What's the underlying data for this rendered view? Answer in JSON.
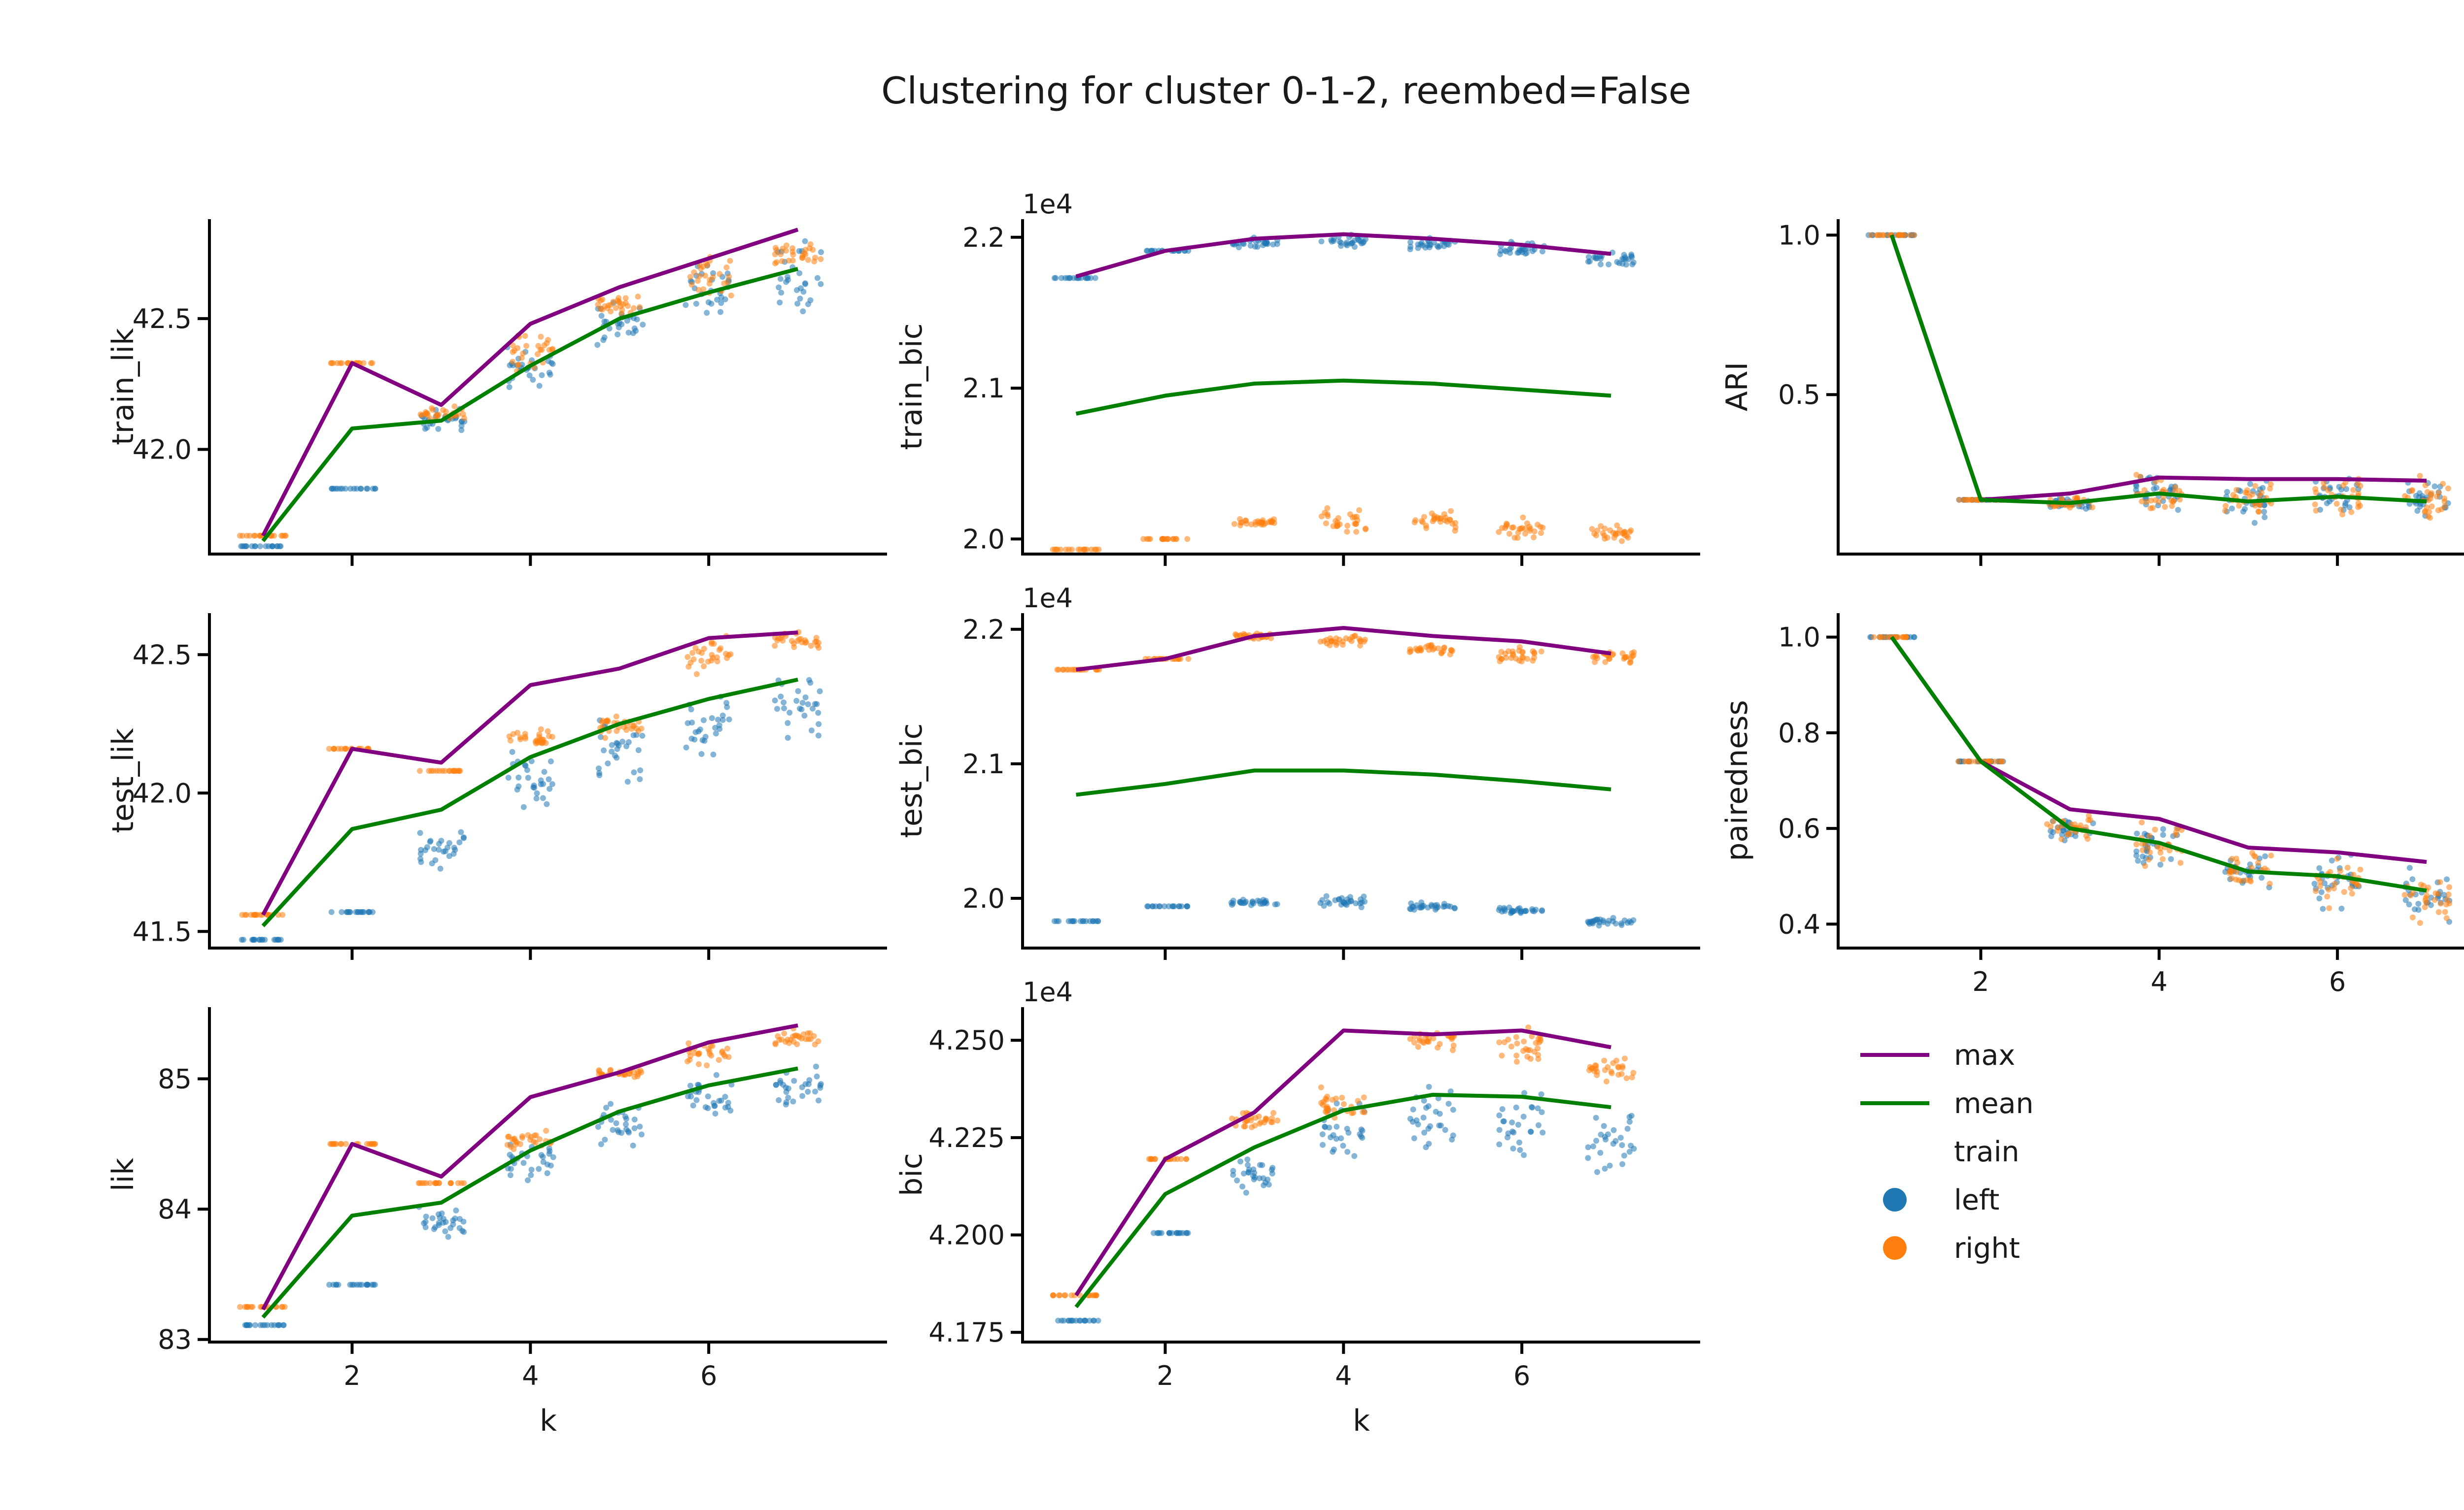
{
  "figure": {
    "title": "Clustering for cluster 0-1-2, reembed=False",
    "xlabel": "k"
  },
  "colors": {
    "max": "#800080",
    "mean": "#008000",
    "left": "#1f77b4",
    "right": "#ff7f0e"
  },
  "legend": {
    "max_label": "max",
    "mean_label": "mean",
    "hue_title": "train",
    "left_label": "left",
    "right_label": "right",
    "placement": "bottom-right"
  },
  "chart_data": [
    {
      "type": "line+strip",
      "ylabel": "train_lik",
      "x": [
        1,
        2,
        3,
        4,
        5,
        6,
        7
      ],
      "xlim": [
        0.4,
        8
      ],
      "ylim": [
        41.6,
        42.88
      ],
      "yticks": [
        42.0,
        42.5
      ],
      "ytick_labels": [
        "42.0",
        "42.5"
      ],
      "series": [
        {
          "name": "max",
          "values": [
            41.67,
            42.33,
            42.17,
            42.48,
            42.62,
            42.73,
            42.84
          ]
        },
        {
          "name": "mean",
          "values": [
            41.65,
            42.08,
            42.11,
            42.32,
            42.5,
            42.6,
            42.69
          ]
        }
      ],
      "strip": {
        "left": {
          "center": [
            41.63,
            41.85,
            42.11,
            42.32,
            42.48,
            42.6,
            42.65
          ],
          "spread": [
            0.0,
            0.0,
            0.04,
            0.08,
            0.08,
            0.1,
            0.12
          ]
        },
        "right": {
          "center": [
            41.67,
            42.33,
            42.14,
            42.38,
            42.56,
            42.67,
            42.75
          ],
          "spread": [
            0.0,
            0.0,
            0.03,
            0.06,
            0.05,
            0.08,
            0.05
          ]
        }
      }
    },
    {
      "type": "line+strip",
      "ylabel": "train_bic",
      "offset_label": "1e4",
      "x": [
        1,
        2,
        3,
        4,
        5,
        6,
        7
      ],
      "xlim": [
        0.4,
        8
      ],
      "ylim": [
        1.99,
        2.212
      ],
      "yticks": [
        2.0,
        2.1,
        2.2
      ],
      "ytick_labels": [
        "2.0",
        "2.1",
        "2.2"
      ],
      "series": [
        {
          "name": "max",
          "values": [
            2.174,
            2.191,
            2.199,
            2.202,
            2.199,
            2.195,
            2.189
          ]
        },
        {
          "name": "mean",
          "values": [
            2.083,
            2.095,
            2.103,
            2.105,
            2.103,
            2.099,
            2.095
          ]
        }
      ],
      "strip": {
        "left": {
          "center": [
            2.173,
            2.191,
            2.196,
            2.198,
            2.195,
            2.192,
            2.186
          ],
          "spread": [
            0.0,
            0.0,
            0.003,
            0.005,
            0.004,
            0.004,
            0.004
          ]
        },
        "right": {
          "center": [
            1.993,
            2.0,
            2.011,
            2.012,
            2.012,
            2.007,
            2.004
          ],
          "spread": [
            0.0,
            0.0,
            0.002,
            0.006,
            0.005,
            0.006,
            0.004
          ]
        }
      }
    },
    {
      "type": "line+strip",
      "ylabel": "ARI",
      "x": [
        1,
        2,
        3,
        4,
        5,
        6,
        7
      ],
      "xlim": [
        0.4,
        8
      ],
      "ylim": [
        0.0,
        1.05
      ],
      "yticks": [
        0.5,
        1.0
      ],
      "ytick_labels": [
        "0.5",
        "1.0"
      ],
      "series": [
        {
          "name": "max",
          "values": [
            1.0,
            0.17,
            0.19,
            0.24,
            0.235,
            0.235,
            0.23
          ]
        },
        {
          "name": "mean",
          "values": [
            1.0,
            0.17,
            0.16,
            0.19,
            0.165,
            0.18,
            0.165
          ]
        }
      ],
      "strip": {
        "left": {
          "center": [
            1.0,
            0.17,
            0.16,
            0.19,
            0.17,
            0.19,
            0.17
          ],
          "spread": [
            0.0,
            0.0,
            0.02,
            0.06,
            0.06,
            0.06,
            0.06
          ]
        },
        "right": {
          "center": [
            1.0,
            0.17,
            0.16,
            0.19,
            0.17,
            0.19,
            0.17
          ],
          "spread": [
            0.0,
            0.0,
            0.02,
            0.06,
            0.06,
            0.06,
            0.06
          ]
        }
      }
    },
    {
      "type": "line+strip",
      "ylabel": "test_lik",
      "x": [
        1,
        2,
        3,
        4,
        5,
        6,
        7
      ],
      "xlim": [
        0.4,
        8
      ],
      "ylim": [
        41.44,
        42.65
      ],
      "yticks": [
        41.5,
        42.0,
        42.5
      ],
      "ytick_labels": [
        "41.5",
        "42.0",
        "42.5"
      ],
      "series": [
        {
          "name": "max",
          "values": [
            41.56,
            42.16,
            42.11,
            42.39,
            42.45,
            42.56,
            42.58
          ]
        },
        {
          "name": "mean",
          "values": [
            41.52,
            41.87,
            41.94,
            42.13,
            42.25,
            42.34,
            42.41
          ]
        }
      ],
      "strip": {
        "left": {
          "center": [
            41.47,
            41.57,
            41.8,
            42.05,
            42.15,
            42.25,
            42.3
          ],
          "spread": [
            0.0,
            0.0,
            0.06,
            0.1,
            0.1,
            0.1,
            0.12
          ]
        },
        "right": {
          "center": [
            41.56,
            42.16,
            42.08,
            42.2,
            42.24,
            42.5,
            42.55
          ],
          "spread": [
            0.0,
            0.0,
            0.0,
            0.03,
            0.03,
            0.06,
            0.03
          ]
        }
      }
    },
    {
      "type": "line+strip",
      "ylabel": "test_bic",
      "offset_label": "1e4",
      "x": [
        1,
        2,
        3,
        4,
        5,
        6,
        7
      ],
      "xlim": [
        0.4,
        8
      ],
      "ylim": [
        1.963,
        2.212
      ],
      "yticks": [
        2.0,
        2.1,
        2.2
      ],
      "ytick_labels": [
        "2.0",
        "2.1",
        "2.2"
      ],
      "series": [
        {
          "name": "max",
          "values": [
            2.17,
            2.178,
            2.195,
            2.201,
            2.195,
            2.191,
            2.182
          ]
        },
        {
          "name": "mean",
          "values": [
            2.077,
            2.085,
            2.095,
            2.095,
            2.092,
            2.087,
            2.081
          ]
        }
      ],
      "strip": {
        "left": {
          "center": [
            1.983,
            1.994,
            1.997,
            1.998,
            1.994,
            1.991,
            1.983
          ],
          "spread": [
            0.0,
            0.0,
            0.002,
            0.004,
            0.003,
            0.002,
            0.003
          ]
        },
        "right": {
          "center": [
            2.17,
            2.178,
            2.195,
            2.191,
            2.185,
            2.181,
            2.18
          ],
          "spread": [
            0.0,
            0.0,
            0.002,
            0.004,
            0.003,
            0.006,
            0.004
          ]
        }
      }
    },
    {
      "type": "line+strip",
      "ylabel": "pairedness",
      "x": [
        1,
        2,
        3,
        4,
        5,
        6,
        7
      ],
      "xlim": [
        0.4,
        8
      ],
      "ylim": [
        0.35,
        1.05
      ],
      "yticks": [
        0.4,
        0.6,
        0.8,
        1.0
      ],
      "ytick_labels": [
        "0.4",
        "0.6",
        "0.8",
        "1.0"
      ],
      "series": [
        {
          "name": "max",
          "values": [
            1.0,
            0.74,
            0.64,
            0.62,
            0.56,
            0.55,
            0.53
          ]
        },
        {
          "name": "mean",
          "values": [
            1.0,
            0.74,
            0.6,
            0.57,
            0.51,
            0.5,
            0.47
          ]
        }
      ],
      "strip": {
        "left": {
          "center": [
            1.0,
            0.74,
            0.6,
            0.56,
            0.51,
            0.49,
            0.46
          ],
          "spread": [
            0.0,
            0.0,
            0.02,
            0.05,
            0.04,
            0.05,
            0.05
          ]
        },
        "right": {
          "center": [
            1.0,
            0.74,
            0.6,
            0.56,
            0.51,
            0.49,
            0.46
          ],
          "spread": [
            0.0,
            0.0,
            0.02,
            0.05,
            0.04,
            0.05,
            0.05
          ]
        }
      }
    },
    {
      "type": "line+strip",
      "ylabel": "lik",
      "x": [
        1,
        2,
        3,
        4,
        5,
        6,
        7
      ],
      "xlim": [
        0.4,
        8
      ],
      "ylim": [
        82.98,
        85.55
      ],
      "yticks": [
        83,
        84,
        85
      ],
      "ytick_labels": [
        "83",
        "84",
        "85"
      ],
      "series": [
        {
          "name": "max",
          "values": [
            83.23,
            84.5,
            84.25,
            84.86,
            85.05,
            85.28,
            85.41
          ]
        },
        {
          "name": "mean",
          "values": [
            83.17,
            83.95,
            84.05,
            84.45,
            84.75,
            84.95,
            85.08
          ]
        }
      ],
      "strip": {
        "left": {
          "center": [
            83.11,
            83.42,
            83.9,
            84.35,
            84.65,
            84.85,
            84.95
          ],
          "spread": [
            0.0,
            0.0,
            0.1,
            0.15,
            0.15,
            0.15,
            0.15
          ]
        },
        "right": {
          "center": [
            83.25,
            84.5,
            84.2,
            84.52,
            85.04,
            85.2,
            85.32
          ],
          "spread": [
            0.0,
            0.0,
            0.0,
            0.06,
            0.03,
            0.1,
            0.06
          ]
        }
      }
    },
    {
      "type": "line+strip",
      "ylabel": "bic",
      "offset_label": "1e4",
      "x": [
        1,
        2,
        3,
        4,
        5,
        6,
        7
      ],
      "xlim": [
        0.4,
        8
      ],
      "ylim": [
        4.1725,
        4.2585
      ],
      "yticks": [
        4.175,
        4.2,
        4.225,
        4.25
      ],
      "ytick_labels": [
        "4.175",
        "4.200",
        "4.225",
        "4.250"
      ],
      "series": [
        {
          "name": "max",
          "values": [
            4.1845,
            4.2195,
            4.2315,
            4.2525,
            4.2515,
            4.2525,
            4.2482
          ]
        },
        {
          "name": "mean",
          "values": [
            4.1815,
            4.2105,
            4.2225,
            4.232,
            4.236,
            4.2355,
            4.2328
          ]
        }
      ],
      "strip": {
        "left": {
          "center": [
            4.178,
            4.2005,
            4.215,
            4.227,
            4.229,
            4.229,
            4.224
          ],
          "spread": [
            0.0,
            0.0,
            0.005,
            0.008,
            0.008,
            0.008,
            0.008
          ]
        },
        "right": {
          "center": [
            4.1845,
            4.2195,
            4.2295,
            4.2335,
            4.25,
            4.248,
            4.2425
          ],
          "spread": [
            0.0,
            0.0,
            0.002,
            0.004,
            0.002,
            0.004,
            0.003
          ]
        }
      }
    }
  ]
}
